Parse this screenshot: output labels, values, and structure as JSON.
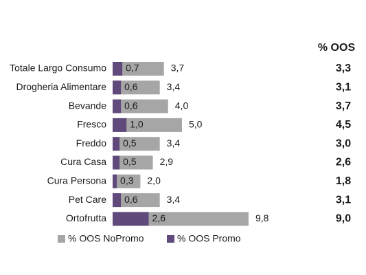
{
  "chart_data": {
    "type": "overlap-barh",
    "categories": [
      "Totale Largo Consumo",
      "Drogheria Alimentare",
      "Bevande",
      "Fresco",
      "Freddo",
      "Cura Casa",
      "Cura Persona",
      "Pet Care",
      "Ortofrutta"
    ],
    "series": [
      {
        "name": "% OOS NoPromo",
        "color": "#a6a6a6",
        "values": [
          3.7,
          3.4,
          4.0,
          5.0,
          3.4,
          2.9,
          2.0,
          3.4,
          9.8
        ],
        "value_labels": [
          "3,7",
          "3,4",
          "4,0",
          "5,0",
          "3,4",
          "2,9",
          "2,0",
          "3,4",
          "9,8"
        ]
      },
      {
        "name": "% OOS Promo",
        "color": "#604a7b",
        "values": [
          0.7,
          0.6,
          0.6,
          1.0,
          0.5,
          0.5,
          0.3,
          0.6,
          2.6
        ],
        "value_labels": [
          "0,7",
          "0,6",
          "0,6",
          "1,0",
          "0,5",
          "0,5",
          "0,3",
          "0,6",
          "2,6"
        ]
      }
    ],
    "xlim": [
      0,
      10
    ],
    "total_column": {
      "title": "% OOS",
      "color": "#604a7b",
      "values": [
        3.3,
        3.1,
        3.7,
        4.5,
        3.0,
        2.6,
        1.8,
        3.1,
        9.0
      ],
      "value_labels": [
        "3,3",
        "3,1",
        "3,7",
        "4,5",
        "3,0",
        "2,6",
        "1,8",
        "3,1",
        "9,0"
      ]
    }
  }
}
